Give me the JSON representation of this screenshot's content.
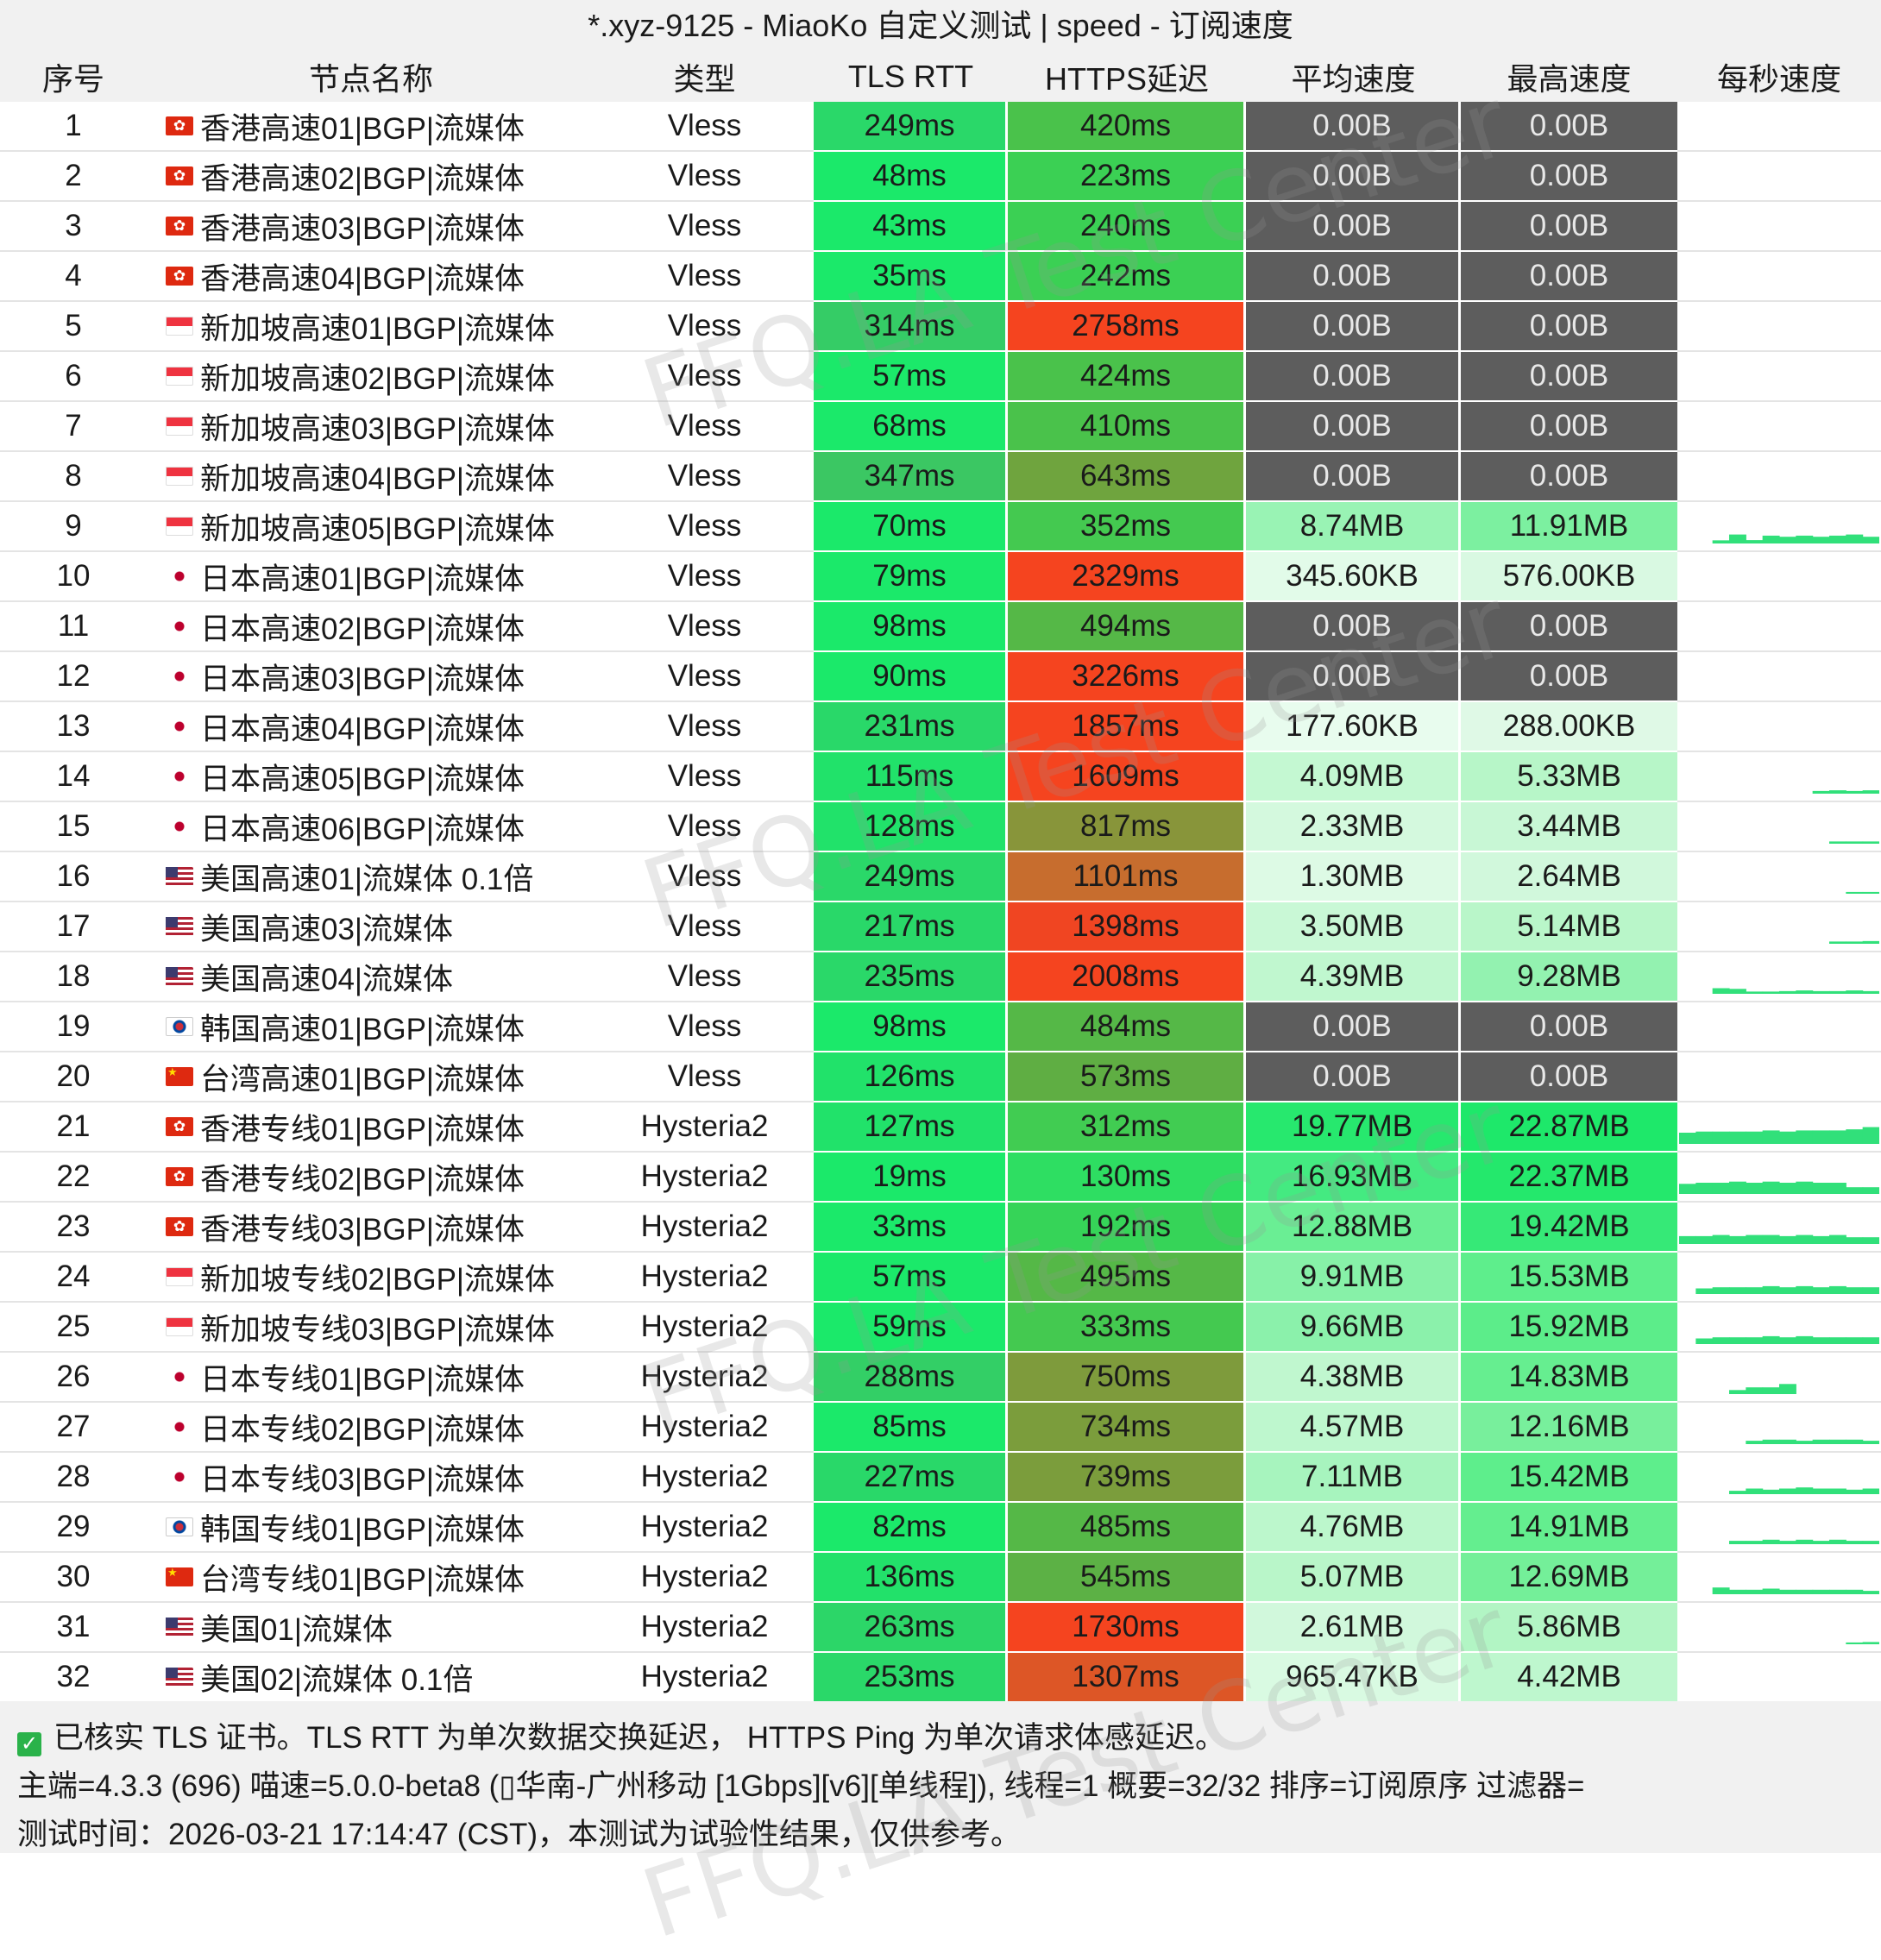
{
  "title": "*.xyz-9125 - MiaoKo 自定义测试 | speed - 订阅速度",
  "columns": [
    "序号",
    "节点名称",
    "类型",
    "TLS RTT",
    "HTTPS延迟",
    "平均速度",
    "最高速度",
    "每秒速度"
  ],
  "rows": [
    {
      "idx": "1",
      "flag": "hk",
      "name": "香港高速01|BGP|流媒体",
      "type": "Vless",
      "tls_rtt": "249ms",
      "https": "420ms",
      "avg": "0.00B",
      "max": "0.00B",
      "tls_color": "#2ad869",
      "https_color": "#4ac24b",
      "avg_color": "#5d5d5d",
      "max_color": "#5d5d5d",
      "speed_samples": []
    },
    {
      "idx": "2",
      "flag": "hk",
      "name": "香港高速02|BGP|流媒体",
      "type": "Vless",
      "tls_rtt": "48ms",
      "https": "223ms",
      "avg": "0.00B",
      "max": "0.00B",
      "tls_color": "#1be96a",
      "https_color": "#3bd054",
      "avg_color": "#5d5d5d",
      "max_color": "#5d5d5d",
      "speed_samples": []
    },
    {
      "idx": "3",
      "flag": "hk",
      "name": "香港高速03|BGP|流媒体",
      "type": "Vless",
      "tls_rtt": "43ms",
      "https": "240ms",
      "avg": "0.00B",
      "max": "0.00B",
      "tls_color": "#1be96a",
      "https_color": "#3bd054",
      "avg_color": "#5d5d5d",
      "max_color": "#5d5d5d",
      "speed_samples": []
    },
    {
      "idx": "4",
      "flag": "hk",
      "name": "香港高速04|BGP|流媒体",
      "type": "Vless",
      "tls_rtt": "35ms",
      "https": "242ms",
      "avg": "0.00B",
      "max": "0.00B",
      "tls_color": "#1be96a",
      "https_color": "#3bd054",
      "avg_color": "#5d5d5d",
      "max_color": "#5d5d5d",
      "speed_samples": []
    },
    {
      "idx": "5",
      "flag": "sg",
      "name": "新加坡高速01|BGP|流媒体",
      "type": "Vless",
      "tls_rtt": "314ms",
      "https": "2758ms",
      "avg": "0.00B",
      "max": "0.00B",
      "tls_color": "#35cc66",
      "https_color": "#f5441f",
      "avg_color": "#5d5d5d",
      "max_color": "#5d5d5d",
      "speed_samples": []
    },
    {
      "idx": "6",
      "flag": "sg",
      "name": "新加坡高速02|BGP|流媒体",
      "type": "Vless",
      "tls_rtt": "57ms",
      "https": "424ms",
      "avg": "0.00B",
      "max": "0.00B",
      "tls_color": "#1be96a",
      "https_color": "#4ac24b",
      "avg_color": "#5d5d5d",
      "max_color": "#5d5d5d",
      "speed_samples": []
    },
    {
      "idx": "7",
      "flag": "sg",
      "name": "新加坡高速03|BGP|流媒体",
      "type": "Vless",
      "tls_rtt": "68ms",
      "https": "410ms",
      "avg": "0.00B",
      "max": "0.00B",
      "tls_color": "#1be96a",
      "https_color": "#4ac24b",
      "avg_color": "#5d5d5d",
      "max_color": "#5d5d5d",
      "speed_samples": []
    },
    {
      "idx": "8",
      "flag": "sg",
      "name": "新加坡高速04|BGP|流媒体",
      "type": "Vless",
      "tls_rtt": "347ms",
      "https": "643ms",
      "avg": "0.00B",
      "max": "0.00B",
      "tls_color": "#3bc763",
      "https_color": "#6fa43e",
      "avg_color": "#5d5d5d",
      "max_color": "#5d5d5d",
      "speed_samples": []
    },
    {
      "idx": "9",
      "flag": "sg",
      "name": "新加坡高速05|BGP|流媒体",
      "type": "Vless",
      "tls_rtt": "70ms",
      "https": "352ms",
      "avg": "8.74MB",
      "max": "11.91MB",
      "tls_color": "#1be96a",
      "https_color": "#44c950",
      "avg_color": "#99f3b4",
      "max_color": "#7cf0a0",
      "speed_samples": [
        0,
        0,
        0.14,
        0.4,
        0.15,
        0.35,
        0.3,
        0.35,
        0.3,
        0.35,
        0.4,
        0.3
      ]
    },
    {
      "idx": "10",
      "flag": "jp",
      "name": "日本高速01|BGP|流媒体",
      "type": "Vless",
      "tls_rtt": "79ms",
      "https": "2329ms",
      "avg": "345.60KB",
      "max": "576.00KB",
      "tls_color": "#1be96a",
      "https_color": "#f5441f",
      "avg_color": "#e2fbe9",
      "max_color": "#d9f9e2",
      "speed_samples": []
    },
    {
      "idx": "11",
      "flag": "jp",
      "name": "日本高速02|BGP|流媒体",
      "type": "Vless",
      "tls_rtt": "98ms",
      "https": "494ms",
      "avg": "0.00B",
      "max": "0.00B",
      "tls_color": "#1be96a",
      "https_color": "#55b847",
      "avg_color": "#5d5d5d",
      "max_color": "#5d5d5d",
      "speed_samples": []
    },
    {
      "idx": "12",
      "flag": "jp",
      "name": "日本高速03|BGP|流媒体",
      "type": "Vless",
      "tls_rtt": "90ms",
      "https": "3226ms",
      "avg": "0.00B",
      "max": "0.00B",
      "tls_color": "#1be96a",
      "https_color": "#f5441f",
      "avg_color": "#5d5d5d",
      "max_color": "#5d5d5d",
      "speed_samples": []
    },
    {
      "idx": "13",
      "flag": "jp",
      "name": "日本高速04|BGP|流媒体",
      "type": "Vless",
      "tls_rtt": "231ms",
      "https": "1857ms",
      "avg": "177.60KB",
      "max": "288.00KB",
      "tls_color": "#29d869",
      "https_color": "#f5441f",
      "avg_color": "#e8fcee",
      "max_color": "#dff9e6",
      "speed_samples": []
    },
    {
      "idx": "14",
      "flag": "jp",
      "name": "日本高速05|BGP|流媒体",
      "type": "Vless",
      "tls_rtt": "115ms",
      "https": "1609ms",
      "avg": "4.09MB",
      "max": "5.33MB",
      "tls_color": "#21e26a",
      "https_color": "#f5441f",
      "avg_color": "#c4f8d2",
      "max_color": "#b7f6c8",
      "speed_samples": [
        0,
        0,
        0,
        0,
        0,
        0,
        0,
        0,
        0.12,
        0.15,
        0.12,
        0.15
      ]
    },
    {
      "idx": "15",
      "flag": "jp",
      "name": "日本高速06|BGP|流媒体",
      "type": "Vless",
      "tls_rtt": "128ms",
      "https": "817ms",
      "avg": "2.33MB",
      "max": "3.44MB",
      "tls_color": "#21e26a",
      "https_color": "#88953a",
      "avg_color": "#d4f9de",
      "max_color": "#c8f7d5",
      "speed_samples": [
        0,
        0,
        0,
        0,
        0,
        0,
        0,
        0,
        0,
        0.1,
        0.1,
        0.1
      ]
    },
    {
      "idx": "16",
      "flag": "us",
      "name": "美国高速01|流媒体 0.1倍",
      "type": "Vless",
      "tls_rtt": "249ms",
      "https": "1101ms",
      "avg": "1.30MB",
      "max": "2.64MB",
      "tls_color": "#2ad869",
      "https_color": "#c76d2e",
      "avg_color": "#ddfae5",
      "max_color": "#d1f8dc",
      "speed_samples": [
        0,
        0,
        0,
        0,
        0,
        0,
        0,
        0,
        0,
        0,
        0.08,
        0.08
      ]
    },
    {
      "idx": "17",
      "flag": "us",
      "name": "美国高速03|流媒体",
      "type": "Vless",
      "tls_rtt": "217ms",
      "https": "1398ms",
      "avg": "3.50MB",
      "max": "5.14MB",
      "tls_color": "#29d869",
      "https_color": "#f04522",
      "avg_color": "#c9f8d6",
      "max_color": "#b9f6c9",
      "speed_samples": [
        0,
        0,
        0,
        0,
        0,
        0,
        0,
        0,
        0,
        0.1,
        0.1,
        0.12
      ]
    },
    {
      "idx": "18",
      "flag": "us",
      "name": "美国高速04|流媒体",
      "type": "Vless",
      "tls_rtt": "235ms",
      "https": "2008ms",
      "avg": "4.39MB",
      "max": "9.28MB",
      "tls_color": "#2ad869",
      "https_color": "#f5441f",
      "avg_color": "#c0f7cf",
      "max_color": "#93f2b0",
      "speed_samples": [
        0,
        0,
        0.25,
        0.22,
        0.1,
        0.1,
        0.12,
        0.15,
        0.12,
        0.12,
        0.15,
        0.12
      ]
    },
    {
      "idx": "19",
      "flag": "kr",
      "name": "韩国高速01|BGP|流媒体",
      "type": "Vless",
      "tls_rtt": "98ms",
      "https": "484ms",
      "avg": "0.00B",
      "max": "0.00B",
      "tls_color": "#1be96a",
      "https_color": "#55b847",
      "avg_color": "#5d5d5d",
      "max_color": "#5d5d5d",
      "speed_samples": []
    },
    {
      "idx": "20",
      "flag": "cn",
      "name": "台湾高速01|BGP|流媒体",
      "type": "Vless",
      "tls_rtt": "126ms",
      "https": "573ms",
      "avg": "0.00B",
      "max": "0.00B",
      "tls_color": "#21e26a",
      "https_color": "#5fae43",
      "avg_color": "#5d5d5d",
      "max_color": "#5d5d5d",
      "speed_samples": []
    },
    {
      "idx": "21",
      "flag": "hk",
      "name": "香港专线01|BGP|流媒体",
      "type": "Hysteria2",
      "tls_rtt": "127ms",
      "https": "312ms",
      "avg": "19.77MB",
      "max": "22.87MB",
      "tls_color": "#21e26a",
      "https_color": "#41cc52",
      "avg_color": "#27e86e",
      "max_color": "#1ee86a",
      "speed_samples": [
        0.5,
        0.55,
        0.55,
        0.55,
        0.55,
        0.6,
        0.55,
        0.6,
        0.6,
        0.6,
        0.65,
        0.75
      ]
    },
    {
      "idx": "22",
      "flag": "hk",
      "name": "香港专线02|BGP|流媒体",
      "type": "Hysteria2",
      "tls_rtt": "19ms",
      "https": "130ms",
      "avg": "16.93MB",
      "max": "22.37MB",
      "tls_color": "#1be96a",
      "https_color": "#2ede62",
      "avg_color": "#44ea81",
      "max_color": "#24e86c",
      "speed_samples": [
        0.45,
        0.5,
        0.5,
        0.55,
        0.5,
        0.55,
        0.5,
        0.55,
        0.5,
        0.5,
        0.3,
        0.3
      ]
    },
    {
      "idx": "23",
      "flag": "hk",
      "name": "香港专线03|BGP|流媒体",
      "type": "Hysteria2",
      "tls_rtt": "33ms",
      "https": "192ms",
      "avg": "12.88MB",
      "max": "19.42MB",
      "tls_color": "#1be96a",
      "https_color": "#36d458",
      "avg_color": "#6aee94",
      "max_color": "#36e977",
      "speed_samples": [
        0.35,
        0.35,
        0.4,
        0.35,
        0.4,
        0.4,
        0.35,
        0.4,
        0.35,
        0.4,
        0.3,
        0.3
      ]
    },
    {
      "idx": "24",
      "flag": "sg",
      "name": "新加坡专线02|BGP|流媒体",
      "type": "Hysteria2",
      "tls_rtt": "57ms",
      "https": "495ms",
      "avg": "9.91MB",
      "max": "15.53MB",
      "tls_color": "#1be96a",
      "https_color": "#55b847",
      "avg_color": "#87f1a8",
      "max_color": "#5eee8c",
      "speed_samples": [
        0,
        0.25,
        0.3,
        0.3,
        0.3,
        0.35,
        0.3,
        0.35,
        0.3,
        0.35,
        0.3,
        0.3
      ]
    },
    {
      "idx": "25",
      "flag": "sg",
      "name": "新加坡专线03|BGP|流媒体",
      "type": "Hysteria2",
      "tls_rtt": "59ms",
      "https": "333ms",
      "avg": "9.66MB",
      "max": "15.92MB",
      "tls_color": "#1be96a",
      "https_color": "#44c950",
      "avg_color": "#8bf1ab",
      "max_color": "#5ced8a",
      "speed_samples": [
        0,
        0.25,
        0.3,
        0.3,
        0.3,
        0.35,
        0.3,
        0.35,
        0.3,
        0.3,
        0.3,
        0.3
      ]
    },
    {
      "idx": "26",
      "flag": "jp",
      "name": "日本专线01|BGP|流媒体",
      "type": "Hysteria2",
      "tls_rtt": "288ms",
      "https": "750ms",
      "avg": "4.38MB",
      "max": "14.83MB",
      "tls_color": "#33cf66",
      "https_color": "#7e9b3c",
      "avg_color": "#c0f7cf",
      "max_color": "#66ee90",
      "speed_samples": [
        0,
        0,
        0,
        0.18,
        0.3,
        0.3,
        0.45,
        0,
        0,
        0,
        0,
        0
      ]
    },
    {
      "idx": "27",
      "flag": "jp",
      "name": "日本专线02|BGP|流媒体",
      "type": "Hysteria2",
      "tls_rtt": "85ms",
      "https": "734ms",
      "avg": "4.57MB",
      "max": "12.16MB",
      "tls_color": "#1be96a",
      "https_color": "#7b9d3c",
      "avg_color": "#bef7ce",
      "max_color": "#78ef9c",
      "speed_samples": [
        0,
        0,
        0,
        0,
        0.15,
        0.2,
        0.2,
        0.15,
        0.2,
        0.2,
        0.2,
        0.15
      ]
    },
    {
      "idx": "28",
      "flag": "jp",
      "name": "日本专线03|BGP|流媒体",
      "type": "Hysteria2",
      "tls_rtt": "227ms",
      "https": "739ms",
      "avg": "7.11MB",
      "max": "15.42MB",
      "tls_color": "#29d869",
      "https_color": "#7b9d3c",
      "avg_color": "#a7f4be",
      "max_color": "#5eee8c",
      "speed_samples": [
        0,
        0,
        0,
        0.15,
        0.25,
        0.2,
        0.25,
        0.3,
        0.25,
        0.25,
        0.2,
        0.25
      ]
    },
    {
      "idx": "29",
      "flag": "kr",
      "name": "韩国专线01|BGP|流媒体",
      "type": "Hysteria2",
      "tls_rtt": "82ms",
      "https": "485ms",
      "avg": "4.76MB",
      "max": "14.91MB",
      "tls_color": "#1be96a",
      "https_color": "#55b847",
      "avg_color": "#bcf7cc",
      "max_color": "#64ee8f",
      "speed_samples": [
        0,
        0,
        0,
        0.15,
        0.15,
        0.2,
        0.15,
        0.2,
        0.15,
        0.2,
        0.15,
        0.15
      ]
    },
    {
      "idx": "30",
      "flag": "cn",
      "name": "台湾专线01|BGP|流媒体",
      "type": "Hysteria2",
      "tls_rtt": "136ms",
      "https": "545ms",
      "avg": "5.07MB",
      "max": "12.69MB",
      "tls_color": "#22e16a",
      "https_color": "#5cb145",
      "avg_color": "#b9f6c9",
      "max_color": "#74ef99",
      "speed_samples": [
        0,
        0,
        0.3,
        0.2,
        0.2,
        0.25,
        0.2,
        0.2,
        0.2,
        0.2,
        0.2,
        0.15
      ]
    },
    {
      "idx": "31",
      "flag": "us",
      "name": "美国01|流媒体",
      "type": "Hysteria2",
      "tls_rtt": "263ms",
      "https": "1730ms",
      "avg": "2.61MB",
      "max": "5.86MB",
      "tls_color": "#2cd668",
      "https_color": "#f5441f",
      "avg_color": "#d1f8dc",
      "max_color": "#b2f5c4",
      "speed_samples": [
        0,
        0,
        0,
        0,
        0,
        0,
        0,
        0,
        0,
        0,
        0.08,
        0.1
      ]
    },
    {
      "idx": "32",
      "flag": "us",
      "name": "美国02|流媒体 0.1倍",
      "type": "Hysteria2",
      "tls_rtt": "253ms",
      "https": "1307ms",
      "avg": "965.47KB",
      "max": "4.42MB",
      "tls_color": "#2ad869",
      "https_color": "#dd5626",
      "avg_color": "#d9faE2",
      "max_color": "#bef7ce",
      "speed_samples": []
    }
  ],
  "footer": {
    "line1": "已核实 TLS 证书。TLS RTT 为单次数据交换延迟，  HTTPS Ping 为单次请求体感延迟。",
    "line2": "主端=4.3.3 (696) 喵速=5.0.0-beta8 (▯华南-广州移动 [1Gbps][v6][单线程]), 线程=1 概要=32/32 排序=订阅原序 过滤器=",
    "line3": "测试时间：2026-03-21 17:14:47 (CST)，本测试为试验性结果，仅供参考。"
  },
  "watermark": "FFQ.LA Test Center"
}
